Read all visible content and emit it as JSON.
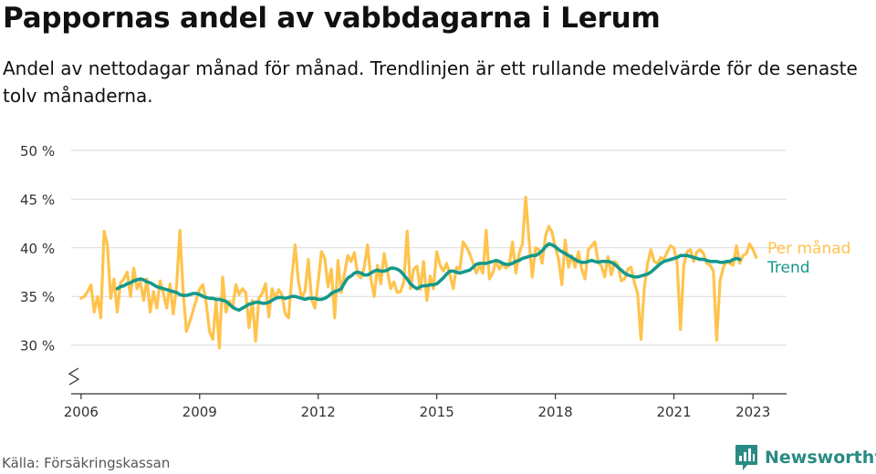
{
  "title": "Pappornas andel av vabbdagarna i Lerum",
  "subtitle": "Andel av nettodagar månad för månad. Trendlinjen är ett rullande medelvärde för de senaste tolv månaderna.",
  "source": "Källa: Försäkringskassan",
  "brand": {
    "name": "Newsworthy",
    "icon": "newsworthy-logo-icon",
    "color": "#2a8a84"
  },
  "chart_data": {
    "type": "line",
    "ylim": [
      25,
      50
    ],
    "xlim": [
      2005.75,
      2023.85
    ],
    "yticks": [
      30,
      35,
      40,
      45,
      50
    ],
    "ytick_labels": [
      "30 %",
      "35 %",
      "40 %",
      "45 %",
      "50 %"
    ],
    "xticks": [
      2006,
      2009,
      2012,
      2015,
      2018,
      2021,
      2023
    ],
    "xtick_labels": [
      "2006",
      "2009",
      "2012",
      "2015",
      "2018",
      "2021",
      "2023"
    ],
    "grid": true,
    "axis_break": true,
    "legend": "right, at series end",
    "series": [
      {
        "name": "Per månad",
        "color": "#ffc34d",
        "x_start": 2006.0,
        "x_step": 0.08333,
        "values": [
          34.8,
          35.0,
          35.5,
          36.2,
          33.4,
          35.0,
          32.8,
          41.7,
          40.3,
          34.8,
          36.8,
          33.4,
          36.4,
          36.8,
          37.5,
          35.0,
          37.9,
          35.8,
          36.5,
          34.6,
          36.8,
          33.4,
          35.5,
          33.8,
          36.6,
          35.3,
          33.8,
          36.3,
          33.2,
          36.0,
          41.8,
          35.5,
          31.4,
          32.4,
          33.5,
          34.7,
          35.8,
          36.2,
          34.3,
          31.4,
          30.6,
          34.5,
          29.7,
          37.0,
          33.4,
          34.5,
          33.8,
          36.2,
          35.2,
          35.8,
          35.4,
          31.8,
          34.6,
          30.4,
          34.8,
          35.3,
          36.3,
          32.9,
          35.8,
          34.8,
          35.7,
          35.2,
          33.2,
          32.8,
          36.9,
          40.3,
          36.5,
          34.8,
          35.6,
          38.8,
          34.7,
          33.8,
          36.5,
          39.6,
          38.9,
          36.0,
          37.8,
          32.8,
          38.7,
          35.4,
          37.4,
          39.2,
          38.6,
          39.5,
          37.2,
          36.9,
          38.0,
          40.3,
          36.8,
          35.0,
          38.2,
          36.3,
          39.4,
          37.6,
          35.8,
          36.5,
          35.4,
          35.5,
          36.5,
          41.7,
          35.8,
          37.8,
          38.1,
          35.7,
          38.6,
          34.6,
          37.1,
          35.8,
          39.6,
          38.2,
          37.6,
          38.4,
          37.2,
          35.8,
          38.0,
          37.8,
          40.6,
          40.1,
          39.4,
          38.4,
          37.4,
          38.2,
          37.4,
          41.8,
          36.8,
          37.4,
          38.6,
          37.8,
          38.4,
          37.9,
          38.2,
          40.6,
          37.4,
          39.4,
          40.4,
          45.2,
          40.8,
          37.0,
          40.0,
          39.8,
          38.4,
          41.2,
          42.2,
          41.6,
          40.0,
          38.8,
          36.2,
          40.8,
          38.0,
          39.2,
          38.0,
          39.6,
          37.8,
          36.8,
          39.8,
          40.2,
          40.6,
          38.6,
          38.1,
          37.0,
          39.1,
          37.2,
          38.6,
          38.2,
          36.6,
          36.8,
          37.8,
          38.0,
          36.4,
          35.3,
          30.6,
          35.8,
          38.4,
          39.8,
          38.6,
          38.4,
          39.0,
          38.8,
          39.6,
          40.2,
          40.0,
          38.4,
          31.6,
          38.2,
          39.6,
          39.8,
          38.6,
          39.6,
          39.8,
          39.4,
          38.4,
          38.2,
          37.6,
          30.5,
          36.6,
          38.0,
          38.6,
          38.4,
          38.2,
          40.2,
          38.4,
          39.2,
          39.4,
          40.4,
          39.8,
          39.0
        ]
      },
      {
        "name": "Trend",
        "color": "#14998b",
        "x_start": 2006.9167,
        "x_step": 0.08333,
        "values": [
          35.8,
          36.0,
          36.1,
          36.3,
          36.4,
          36.6,
          36.7,
          36.8,
          36.7,
          36.5,
          36.4,
          36.2,
          36.0,
          35.9,
          35.8,
          35.7,
          35.6,
          35.5,
          35.4,
          35.2,
          35.1,
          35.1,
          35.2,
          35.3,
          35.3,
          35.2,
          35.0,
          34.9,
          34.8,
          34.8,
          34.7,
          34.7,
          34.6,
          34.5,
          34.2,
          33.9,
          33.7,
          33.6,
          33.8,
          34.0,
          34.2,
          34.3,
          34.4,
          34.4,
          34.3,
          34.3,
          34.4,
          34.6,
          34.8,
          34.9,
          34.9,
          34.8,
          34.9,
          35.0,
          35.0,
          34.9,
          34.8,
          34.7,
          34.8,
          34.8,
          34.8,
          34.7,
          34.7,
          34.8,
          35.0,
          35.3,
          35.5,
          35.6,
          35.8,
          36.4,
          36.9,
          37.1,
          37.4,
          37.5,
          37.4,
          37.2,
          37.2,
          37.4,
          37.6,
          37.7,
          37.6,
          37.6,
          37.7,
          37.9,
          37.9,
          37.8,
          37.6,
          37.2,
          36.8,
          36.3,
          36.0,
          35.8,
          36.0,
          36.1,
          36.1,
          36.2,
          36.2,
          36.3,
          36.6,
          36.9,
          37.3,
          37.6,
          37.6,
          37.5,
          37.4,
          37.5,
          37.6,
          37.7,
          38.0,
          38.3,
          38.4,
          38.4,
          38.4,
          38.5,
          38.6,
          38.7,
          38.6,
          38.4,
          38.3,
          38.3,
          38.4,
          38.6,
          38.7,
          38.9,
          39.0,
          39.1,
          39.2,
          39.2,
          39.4,
          39.7,
          40.1,
          40.4,
          40.3,
          40.1,
          39.8,
          39.6,
          39.4,
          39.2,
          39.0,
          38.8,
          38.6,
          38.5,
          38.5,
          38.6,
          38.7,
          38.6,
          38.5,
          38.6,
          38.6,
          38.6,
          38.5,
          38.3,
          38.0,
          37.7,
          37.4,
          37.2,
          37.1,
          37.0,
          37.0,
          37.1,
          37.2,
          37.3,
          37.5,
          37.8,
          38.1,
          38.4,
          38.6,
          38.7,
          38.8,
          38.9,
          39.0,
          39.2,
          39.2,
          39.2,
          39.1,
          39.0,
          38.9,
          38.8,
          38.8,
          38.7,
          38.6,
          38.6,
          38.6,
          38.5,
          38.5,
          38.6,
          38.6,
          38.8,
          38.9,
          38.8
        ]
      }
    ]
  }
}
